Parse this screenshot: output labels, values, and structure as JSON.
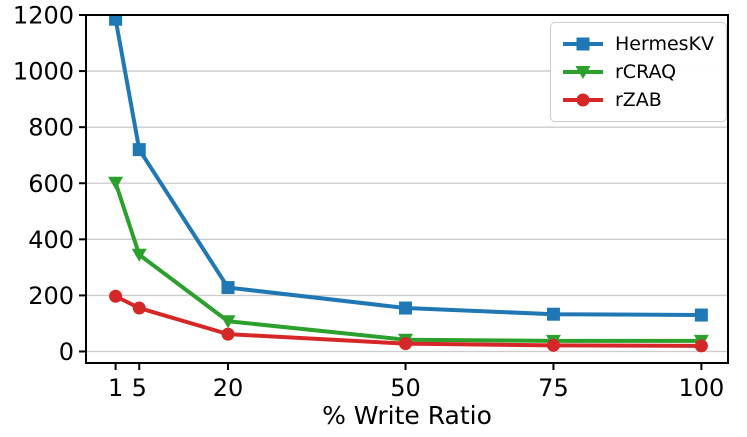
{
  "chart_data": {
    "type": "line",
    "title": "",
    "xlabel": "% Write Ratio",
    "ylabel": "",
    "x": [
      1,
      5,
      20,
      50,
      75,
      100
    ],
    "xticks": [
      "1",
      "5",
      "20",
      "50",
      "75",
      "100"
    ],
    "yticks": [
      "0",
      "200",
      "400",
      "600",
      "800",
      "1000",
      "1200"
    ],
    "ytick_values": [
      0,
      200,
      400,
      600,
      800,
      1000,
      1200
    ],
    "xlim": [
      -4,
      104.5
    ],
    "ylim": [
      -41,
      1200
    ],
    "grid": "horizontal",
    "legend_position": "upper-right",
    "series": [
      {
        "name": "HermesKV",
        "color": "#1f77b4",
        "marker": "square",
        "values": [
          1185,
          720,
          228,
          155,
          133,
          130
        ]
      },
      {
        "name": "rCRAQ",
        "color": "#2ca02c",
        "marker": "triangle-down",
        "values": [
          602,
          345,
          108,
          42,
          38,
          38
        ]
      },
      {
        "name": "rZAB",
        "color": "#d62728",
        "marker": "circle",
        "values": [
          197,
          155,
          62,
          28,
          22,
          20
        ]
      }
    ]
  },
  "colors": {
    "background": "#ffffff",
    "axis": "#000000",
    "grid": "#cccccc",
    "tick_label": "#000000",
    "legend_border": "#cccccc"
  }
}
